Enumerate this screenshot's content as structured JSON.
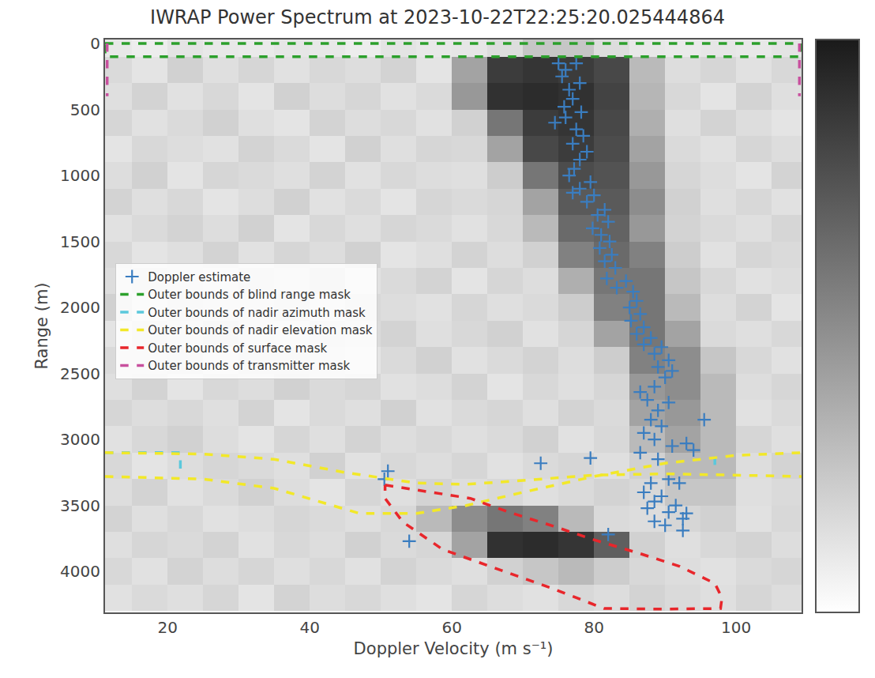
{
  "chart_data": {
    "type": "heatmap",
    "title": "IWRAP Power Spectrum at 2023-10-22T22:25:20.025444864",
    "x_label": "Doppler Velocity (m s⁻¹)",
    "y_label": "Range (m)",
    "xlim": [
      11.2,
      109.2
    ],
    "ylim": [
      4310,
      -30
    ],
    "xticks": [
      20,
      40,
      60,
      80,
      100
    ],
    "yticks": [
      0,
      500,
      1000,
      1500,
      2000,
      2500,
      3000,
      3500,
      4000
    ],
    "legend": "left",
    "heatmap": {
      "colorbar_range": [
        0,
        1
      ],
      "x": [
        12.5,
        17.5,
        22.5,
        27.5,
        32.5,
        37.5,
        42.5,
        47.5,
        52.5,
        57.5,
        62.5,
        67.5,
        72.5,
        77.5,
        82.5,
        87.5,
        92.5,
        97.5,
        102.5,
        107.5
      ],
      "y": [
        0,
        200,
        400,
        600,
        800,
        1000,
        1200,
        1400,
        1600,
        1800,
        2000,
        2200,
        2400,
        2600,
        2800,
        3000,
        3200,
        3400,
        3600,
        3800,
        4000,
        4200
      ],
      "z": [
        [
          0.1,
          0.08,
          0.12,
          0.1,
          0.09,
          0.11,
          0.1,
          0.08,
          0.12,
          0.1,
          0.11,
          0.15,
          0.25,
          0.25,
          0.15,
          0.1,
          0.09,
          0.11,
          0.1,
          0.12
        ],
        [
          0.16,
          0.12,
          0.2,
          0.14,
          0.18,
          0.13,
          0.17,
          0.15,
          0.19,
          0.12,
          0.4,
          0.85,
          0.88,
          0.85,
          0.8,
          0.3,
          0.15,
          0.18,
          0.13,
          0.17
        ],
        [
          0.14,
          0.19,
          0.13,
          0.17,
          0.12,
          0.2,
          0.15,
          0.18,
          0.13,
          0.16,
          0.45,
          0.9,
          0.92,
          0.9,
          0.82,
          0.32,
          0.17,
          0.12,
          0.19,
          0.14
        ],
        [
          0.18,
          0.13,
          0.16,
          0.2,
          0.14,
          0.12,
          0.19,
          0.15,
          0.17,
          0.13,
          0.2,
          0.6,
          0.85,
          0.88,
          0.8,
          0.35,
          0.14,
          0.19,
          0.15,
          0.12
        ],
        [
          0.12,
          0.17,
          0.15,
          0.13,
          0.19,
          0.16,
          0.12,
          0.2,
          0.14,
          0.18,
          0.17,
          0.4,
          0.8,
          0.85,
          0.78,
          0.4,
          0.16,
          0.13,
          0.18,
          0.15
        ],
        [
          0.15,
          0.2,
          0.12,
          0.18,
          0.16,
          0.14,
          0.19,
          0.13,
          0.17,
          0.15,
          0.14,
          0.22,
          0.6,
          0.78,
          0.75,
          0.45,
          0.18,
          0.15,
          0.12,
          0.19
        ],
        [
          0.19,
          0.14,
          0.17,
          0.12,
          0.15,
          0.2,
          0.13,
          0.16,
          0.12,
          0.18,
          0.16,
          0.18,
          0.4,
          0.72,
          0.72,
          0.5,
          0.2,
          0.14,
          0.17,
          0.13
        ],
        [
          0.13,
          0.16,
          0.19,
          0.15,
          0.2,
          0.12,
          0.17,
          0.14,
          0.18,
          0.16,
          0.13,
          0.17,
          0.3,
          0.65,
          0.68,
          0.45,
          0.19,
          0.16,
          0.14,
          0.18
        ],
        [
          0.17,
          0.12,
          0.14,
          0.19,
          0.13,
          0.18,
          0.15,
          0.2,
          0.12,
          0.14,
          0.19,
          0.15,
          0.2,
          0.55,
          0.65,
          0.55,
          0.22,
          0.13,
          0.18,
          0.16
        ],
        [
          0.15,
          0.18,
          0.16,
          0.12,
          0.17,
          0.14,
          0.2,
          0.13,
          0.16,
          0.19,
          0.12,
          0.18,
          0.15,
          0.35,
          0.6,
          0.6,
          0.25,
          0.17,
          0.13,
          0.15
        ],
        [
          0.2,
          0.13,
          0.18,
          0.16,
          0.14,
          0.19,
          0.12,
          0.17,
          0.15,
          0.13,
          0.18,
          0.14,
          0.16,
          0.22,
          0.55,
          0.6,
          0.3,
          0.15,
          0.19,
          0.12
        ],
        [
          0.12,
          0.17,
          0.14,
          0.2,
          0.15,
          0.13,
          0.18,
          0.16,
          0.19,
          0.14,
          0.17,
          0.2,
          0.13,
          0.18,
          0.4,
          0.6,
          0.4,
          0.16,
          0.14,
          0.17
        ],
        [
          0.16,
          0.14,
          0.19,
          0.13,
          0.18,
          0.17,
          0.14,
          0.12,
          0.16,
          0.2,
          0.13,
          0.16,
          0.19,
          0.15,
          0.22,
          0.55,
          0.5,
          0.25,
          0.17,
          0.13
        ],
        [
          0.14,
          0.19,
          0.12,
          0.17,
          0.15,
          0.2,
          0.16,
          0.18,
          0.13,
          0.15,
          0.19,
          0.12,
          0.17,
          0.14,
          0.18,
          0.45,
          0.5,
          0.3,
          0.15,
          0.18
        ],
        [
          0.18,
          0.15,
          0.17,
          0.14,
          0.19,
          0.12,
          0.16,
          0.14,
          0.2,
          0.13,
          0.16,
          0.18,
          0.14,
          0.19,
          0.16,
          0.4,
          0.45,
          0.3,
          0.13,
          0.16
        ],
        [
          0.13,
          0.17,
          0.2,
          0.15,
          0.12,
          0.18,
          0.14,
          0.19,
          0.15,
          0.17,
          0.14,
          0.16,
          0.2,
          0.13,
          0.17,
          0.3,
          0.4,
          0.3,
          0.18,
          0.14
        ],
        [
          0.17,
          0.12,
          0.15,
          0.18,
          0.16,
          0.14,
          0.2,
          0.13,
          0.17,
          0.15,
          0.18,
          0.13,
          0.16,
          0.18,
          0.14,
          0.2,
          0.3,
          0.3,
          0.15,
          0.19
        ],
        [
          0.15,
          0.19,
          0.13,
          0.16,
          0.2,
          0.15,
          0.12,
          0.18,
          0.14,
          0.19,
          0.15,
          0.17,
          0.14,
          0.16,
          0.19,
          0.17,
          0.25,
          0.25,
          0.14,
          0.16
        ],
        [
          0.19,
          0.14,
          0.17,
          0.13,
          0.15,
          0.18,
          0.16,
          0.14,
          0.17,
          0.3,
          0.5,
          0.6,
          0.55,
          0.3,
          0.16,
          0.15,
          0.18,
          0.2,
          0.13,
          0.17
        ],
        [
          0.14,
          0.18,
          0.16,
          0.19,
          0.13,
          0.17,
          0.15,
          0.2,
          0.16,
          0.18,
          0.4,
          0.9,
          0.92,
          0.88,
          0.7,
          0.2,
          0.14,
          0.17,
          0.19,
          0.15
        ],
        [
          0.17,
          0.13,
          0.19,
          0.15,
          0.18,
          0.14,
          0.17,
          0.13,
          0.19,
          0.16,
          0.14,
          0.2,
          0.25,
          0.3,
          0.22,
          0.17,
          0.15,
          0.13,
          0.16,
          0.18
        ],
        [
          0.13,
          0.16,
          0.14,
          0.18,
          0.12,
          0.19,
          0.15,
          0.17,
          0.14,
          0.12,
          0.18,
          0.15,
          0.13,
          0.17,
          0.15,
          0.19,
          0.16,
          0.14,
          0.18,
          0.15
        ]
      ]
    },
    "series": [
      {
        "name": "Doppler estimate",
        "type": "scatter",
        "marker": "plus",
        "color": "#3a7dc0",
        "x": [
          75,
          77.5,
          76,
          75.5,
          78,
          76.5,
          77,
          75.8,
          78.2,
          76,
          74.5,
          77.5,
          78.5,
          77,
          79,
          78,
          77.2,
          76.5,
          79.5,
          78,
          77,
          80,
          79,
          81.5,
          80.5,
          82,
          79.8,
          81,
          82.2,
          80.8,
          82.5,
          81.5,
          83,
          81.8,
          84.5,
          83.2,
          85.5,
          86,
          85,
          86.5,
          85.2,
          87,
          86,
          88,
          87,
          89.5,
          88.5,
          90.5,
          89,
          91,
          90,
          88.5,
          86.5,
          87.5,
          90.5,
          89,
          88,
          89.5,
          87,
          88.5,
          91,
          95.5,
          93,
          94,
          86.5,
          89,
          79.5,
          72.5,
          51,
          50.5,
          88,
          90.5,
          92,
          87,
          89.5,
          88.5,
          91.5,
          87.5,
          90.5,
          93,
          92.5,
          88.5,
          90,
          92.5,
          82,
          54
        ],
        "y": [
          150,
          150,
          200,
          250,
          300,
          350,
          420,
          480,
          520,
          560,
          600,
          650,
          700,
          760,
          820,
          880,
          950,
          1000,
          1050,
          1100,
          1130,
          1150,
          1200,
          1260,
          1300,
          1350,
          1400,
          1450,
          1500,
          1550,
          1600,
          1650,
          1700,
          1780,
          1800,
          1850,
          1880,
          1950,
          2000,
          2050,
          2100,
          2150,
          2200,
          2230,
          2280,
          2300,
          2350,
          2400,
          2450,
          2480,
          2530,
          2600,
          2640,
          2700,
          2720,
          2780,
          2850,
          2900,
          2950,
          3000,
          3050,
          2850,
          3030,
          3080,
          3100,
          3150,
          3140,
          3180,
          3240,
          3300,
          3330,
          3300,
          3330,
          3400,
          3430,
          3470,
          3500,
          3520,
          3550,
          3560,
          3600,
          3620,
          3650,
          3690,
          3720,
          3770
        ]
      },
      {
        "name": "Outer bounds of blind range mask",
        "type": "line",
        "line_style": "dashed",
        "color": "#2ca02c",
        "x": [
          11.2,
          109.2,
          109.2,
          11.2,
          11.2
        ],
        "y": [
          0,
          0,
          100,
          100,
          0
        ]
      },
      {
        "name": "Outer bounds of nadir azimuth mask",
        "type": "line",
        "line_style": "dashed",
        "color": "#5bc8dc",
        "x": [
          11.2,
          21.8,
          21.8,
          null,
          97,
          97
        ],
        "y": [
          3100,
          3100,
          3280,
          null,
          3130,
          3250
        ]
      },
      {
        "name": "Outer bounds of nadir elevation mask",
        "type": "line",
        "line_style": "dashed",
        "color": "#f2e829",
        "x": [
          11.2,
          25,
          35,
          45,
          55,
          62,
          70,
          80,
          90,
          100,
          109.2,
          null,
          11.2,
          25,
          35,
          42,
          47,
          55,
          62,
          70,
          80,
          90,
          100,
          109.2
        ],
        "y": [
          3100,
          3110,
          3150,
          3250,
          3330,
          3340,
          3310,
          3270,
          3260,
          3270,
          3280,
          null,
          3280,
          3300,
          3370,
          3480,
          3560,
          3560,
          3500,
          3400,
          3280,
          3180,
          3120,
          3100
        ]
      },
      {
        "name": "Outer bounds of surface mask",
        "type": "line",
        "line_style": "dashed",
        "color": "#e8262b",
        "x": [
          50.6,
          56,
          62.6,
          68,
          74.2,
          80,
          86.4,
          92,
          97,
          98,
          97.8,
          90,
          81.4,
          74.2,
          66.4,
          58.7,
          53.1,
          50.6,
          50.6
        ],
        "y": [
          3345,
          3390,
          3446,
          3550,
          3655,
          3760,
          3863,
          3960,
          4090,
          4200,
          4280,
          4285,
          4280,
          4130,
          3982,
          3833,
          3625,
          3446,
          3345
        ]
      },
      {
        "name": "Outer bounds of transmitter mask",
        "type": "line",
        "line_style": "dashed",
        "color": "#c8509e",
        "x": [
          11.5,
          11.5,
          null,
          108.9,
          108.9
        ],
        "y": [
          0,
          400,
          null,
          0,
          400
        ]
      }
    ]
  }
}
